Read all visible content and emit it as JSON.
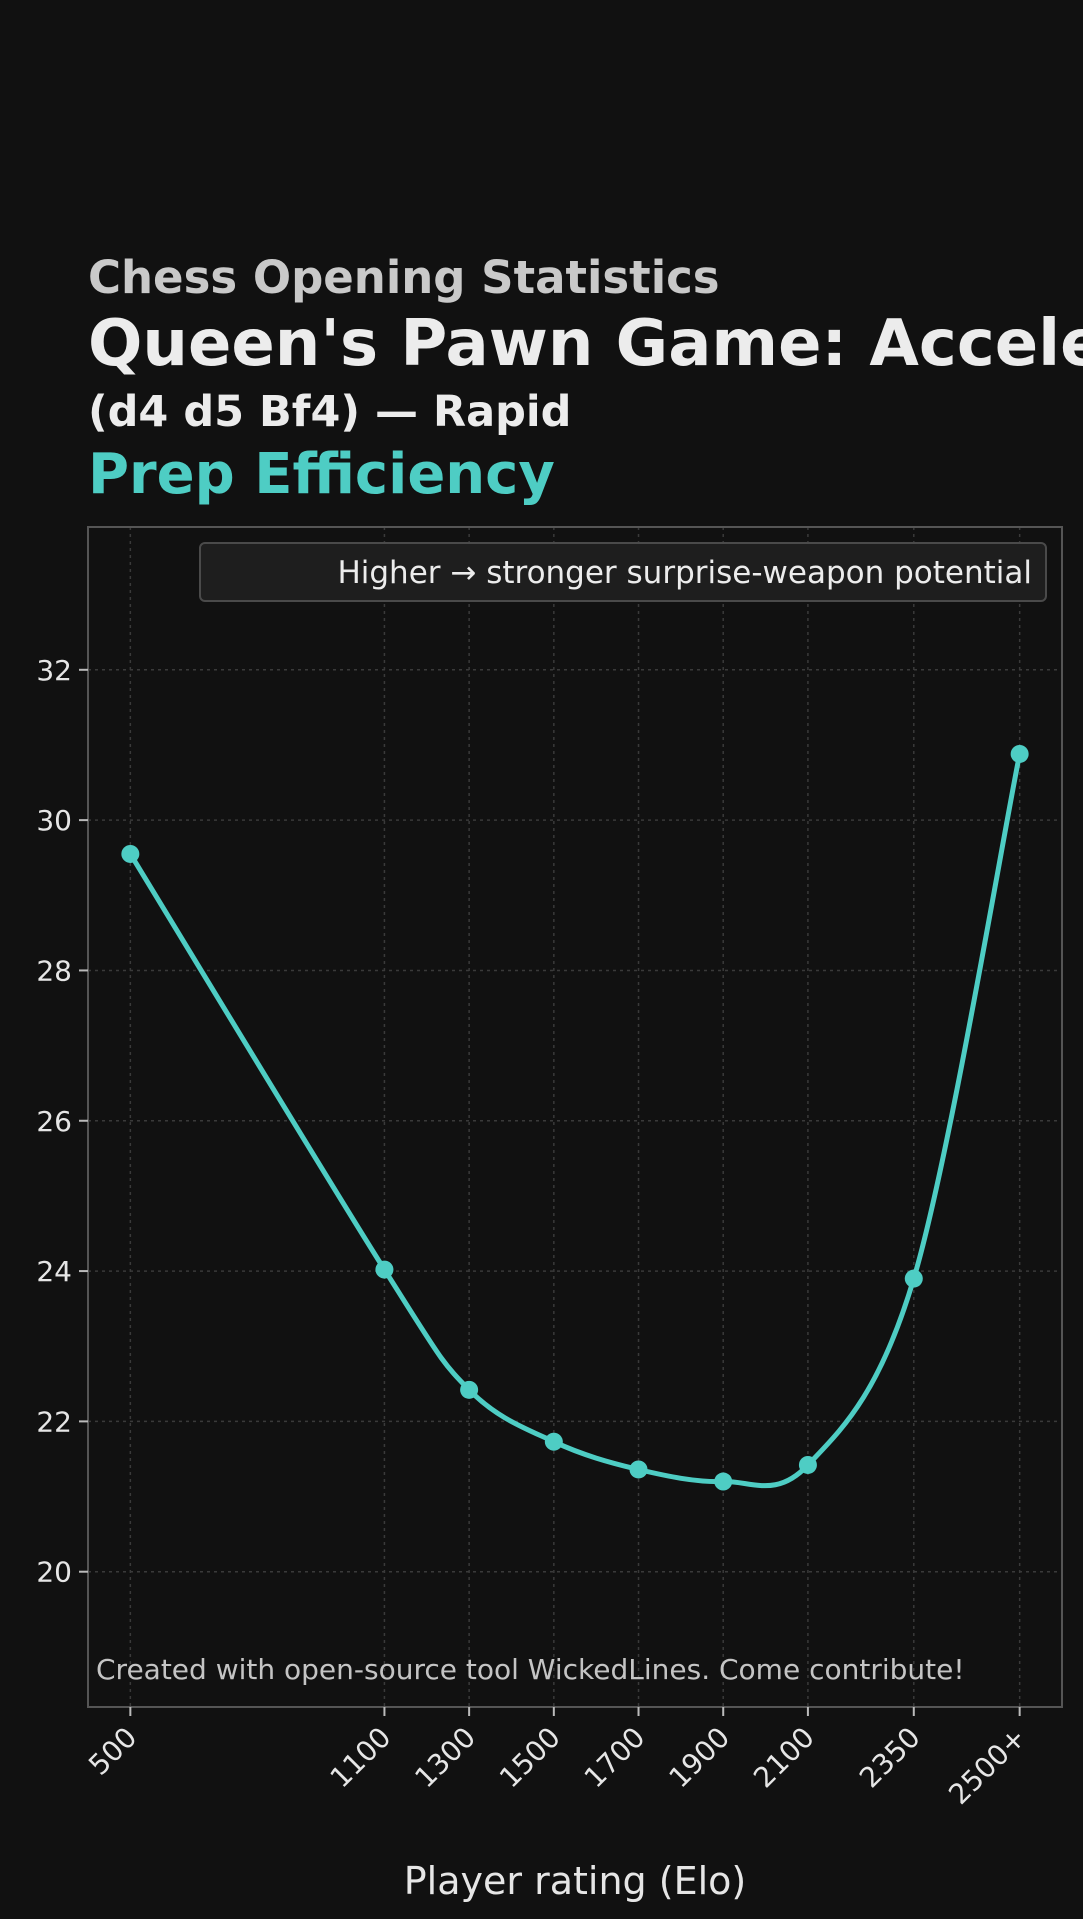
{
  "header": {
    "kicker": "Chess Opening Statistics",
    "title": "Queen's Pawn Game: Accelerated London System",
    "subtitle": "(d4 d5 Bf4) — Rapid",
    "metric": "Prep Efficiency"
  },
  "legend": {
    "text": "Higher → stronger surprise-weapon potential"
  },
  "credit": {
    "text": "Created with open-source tool WickedLines. Come contribute!"
  },
  "chart_data": {
    "type": "line",
    "title": "Prep Efficiency",
    "xlabel": "Player rating (Elo)",
    "ylabel": "",
    "categories": [
      "500",
      "1100",
      "1300",
      "1500",
      "1700",
      "1900",
      "2100",
      "2350",
      "2500+"
    ],
    "x": [
      500,
      1100,
      1300,
      1500,
      1700,
      1900,
      2100,
      2350,
      2600
    ],
    "values": [
      29.55,
      24.02,
      22.42,
      21.73,
      21.36,
      21.2,
      21.42,
      23.9,
      30.88
    ],
    "xlim": [
      400,
      2700
    ],
    "ylim": [
      18.2,
      33.9
    ],
    "yticks": [
      20,
      22,
      24,
      26,
      28,
      30,
      32
    ],
    "grid": true,
    "legend_position": "top-right",
    "colors": {
      "line": "#4ecdc4",
      "background": "#111111",
      "grid": "#3a3a3a",
      "frame": "#555555"
    }
  }
}
